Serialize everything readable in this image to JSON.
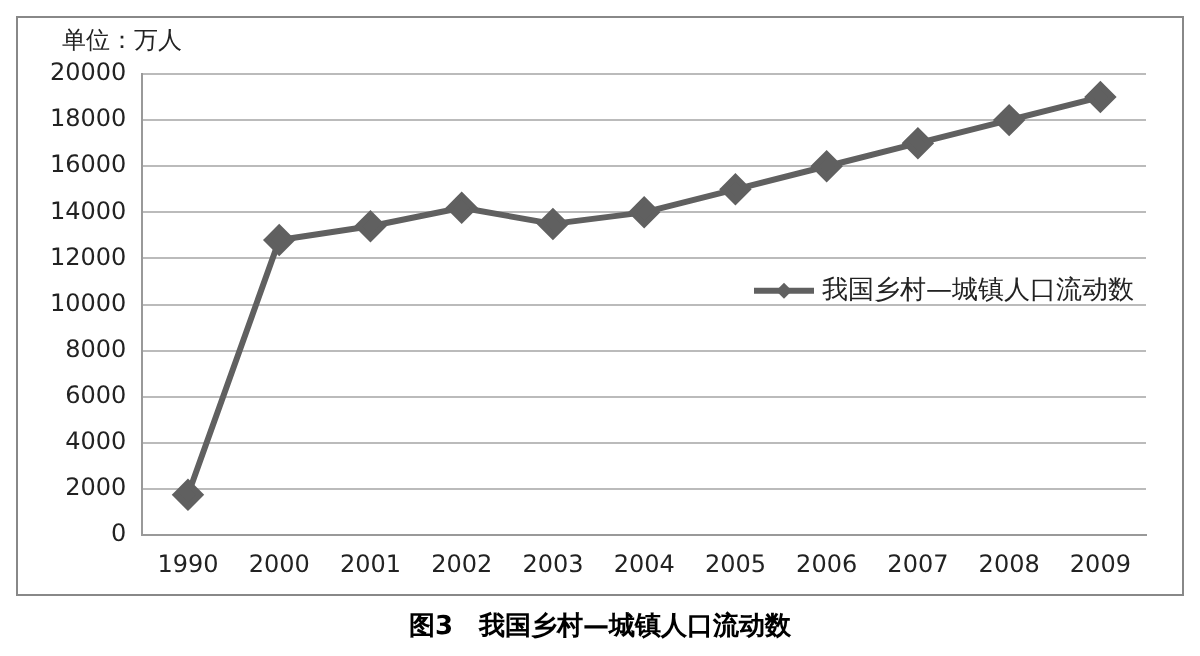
{
  "chart_data": {
    "type": "line",
    "title": "图3　我国乡村—城镇人口流动数",
    "ylabel": "单位：万人",
    "categories": [
      "1990",
      "2000",
      "2001",
      "2002",
      "2003",
      "2004",
      "2005",
      "2006",
      "2007",
      "2008",
      "2009"
    ],
    "series": [
      {
        "name": "我国乡村—城镇人口流动数",
        "color": "#606060",
        "values": [
          1750,
          12800,
          13400,
          14200,
          13500,
          14000,
          15000,
          16000,
          17000,
          18000,
          19000
        ]
      }
    ],
    "ylim": [
      0,
      20000
    ],
    "yticks": [
      0,
      2000,
      4000,
      6000,
      8000,
      10000,
      12000,
      14000,
      16000,
      18000,
      20000
    ],
    "grid": "y",
    "legend": "right",
    "marker": "diamond",
    "line_style": "solid"
  }
}
